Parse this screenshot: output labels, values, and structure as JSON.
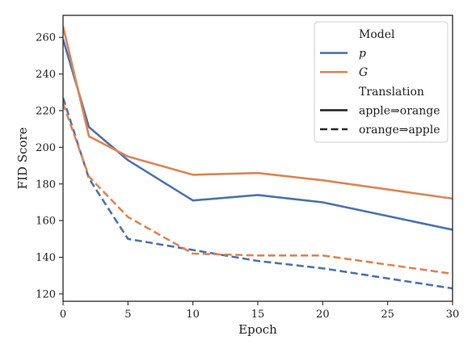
{
  "chart_data": {
    "type": "line",
    "xlabel": "Epoch",
    "ylabel": "FID Score",
    "xlim": [
      0,
      30
    ],
    "ylim": [
      116,
      272
    ],
    "x_ticks": [
      0,
      5,
      10,
      15,
      20,
      25,
      30
    ],
    "y_ticks": [
      120,
      140,
      160,
      180,
      200,
      220,
      240,
      260
    ],
    "grid": false,
    "legend_position": "top-right",
    "legend": {
      "group1_title": "Model",
      "group2_title": "Translation",
      "models": [
        {
          "label": "p",
          "color": "#4c72b0"
        },
        {
          "label": "G",
          "color": "#dd8452"
        }
      ],
      "translations": [
        {
          "label": "apple⇒orange",
          "style": "solid"
        },
        {
          "label": "orange⇒apple",
          "style": "dashed"
        }
      ]
    },
    "series": [
      {
        "name": "p",
        "translation": "apple⇒orange",
        "color": "#4c72b0",
        "style": "solid",
        "x": [
          0,
          2,
          5,
          10,
          15,
          20,
          30
        ],
        "y": [
          259,
          211,
          193,
          171,
          174,
          170,
          155
        ]
      },
      {
        "name": "G",
        "translation": "apple⇒orange",
        "color": "#dd8452",
        "style": "solid",
        "x": [
          0,
          2,
          5,
          10,
          15,
          20,
          30
        ],
        "y": [
          266,
          206,
          195,
          185,
          186,
          182,
          172
        ]
      },
      {
        "name": "p",
        "translation": "orange⇒apple",
        "color": "#4c72b0",
        "style": "dashed",
        "x": [
          0,
          2,
          5,
          10,
          15,
          20,
          30
        ],
        "y": [
          227,
          183,
          150,
          144,
          138,
          134,
          123
        ]
      },
      {
        "name": "G",
        "translation": "orange⇒apple",
        "color": "#dd8452",
        "style": "dashed",
        "x": [
          0,
          2,
          5,
          10,
          15,
          20,
          30
        ],
        "y": [
          224,
          184,
          162,
          142,
          141,
          141,
          131
        ]
      }
    ]
  }
}
